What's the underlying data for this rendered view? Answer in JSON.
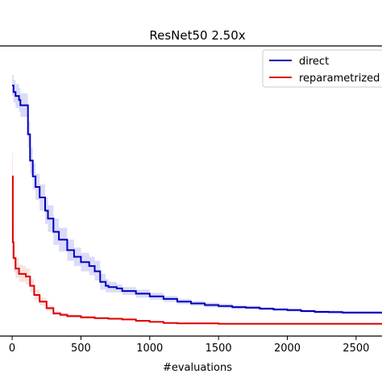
{
  "chart_data": {
    "type": "line",
    "title": "ResNet50 2.50x",
    "xlabel": "#evaluations",
    "ylabel": "",
    "xlim": [
      -100,
      2700
    ],
    "ylim": [
      0,
      1
    ],
    "x_ticks": [
      0,
      500,
      1000,
      1500,
      2000,
      2500
    ],
    "x_tick_labels": [
      "0",
      "500",
      "1000",
      "1500",
      "2000",
      "2500"
    ],
    "legend_position": "top-right",
    "series": [
      {
        "name": "direct",
        "color": "#0000bb",
        "band_color": "#9999ee",
        "x": [
          0,
          10,
          25,
          50,
          60,
          110,
          115,
          130,
          150,
          170,
          200,
          240,
          260,
          300,
          340,
          400,
          450,
          500,
          560,
          600,
          640,
          680,
          700,
          760,
          800,
          900,
          1000,
          1100,
          1200,
          1300,
          1400,
          1500,
          1600,
          1700,
          1800,
          1900,
          2000,
          2100,
          2200,
          2300,
          2400,
          2500,
          2600,
          2700
        ],
        "y": [
          0.905,
          0.88,
          0.865,
          0.85,
          0.83,
          0.83,
          0.72,
          0.62,
          0.56,
          0.52,
          0.48,
          0.43,
          0.4,
          0.35,
          0.32,
          0.28,
          0.255,
          0.235,
          0.22,
          0.2,
          0.16,
          0.145,
          0.14,
          0.135,
          0.125,
          0.115,
          0.105,
          0.095,
          0.085,
          0.078,
          0.072,
          0.068,
          0.064,
          0.062,
          0.058,
          0.055,
          0.053,
          0.049,
          0.046,
          0.045,
          0.043,
          0.043,
          0.043,
          0.043
        ],
        "y_upper": [
          0.945,
          0.925,
          0.91,
          0.895,
          0.875,
          0.87,
          0.77,
          0.67,
          0.61,
          0.57,
          0.53,
          0.48,
          0.45,
          0.4,
          0.365,
          0.32,
          0.29,
          0.27,
          0.255,
          0.24,
          0.19,
          0.17,
          0.16,
          0.15,
          0.14,
          0.13,
          0.118,
          0.106,
          0.095,
          0.087,
          0.081,
          0.076,
          0.072,
          0.069,
          0.065,
          0.062,
          0.059,
          0.055,
          0.052,
          0.051,
          0.049,
          0.049,
          0.049,
          0.049
        ],
        "y_lower": [
          0.865,
          0.84,
          0.82,
          0.805,
          0.785,
          0.79,
          0.67,
          0.57,
          0.51,
          0.47,
          0.43,
          0.38,
          0.35,
          0.3,
          0.275,
          0.24,
          0.22,
          0.2,
          0.185,
          0.165,
          0.13,
          0.12,
          0.12,
          0.12,
          0.11,
          0.1,
          0.092,
          0.084,
          0.075,
          0.069,
          0.063,
          0.06,
          0.056,
          0.055,
          0.051,
          0.048,
          0.047,
          0.043,
          0.04,
          0.039,
          0.037,
          0.037,
          0.037,
          0.037
        ]
      },
      {
        "name": "reparametrized",
        "color": "#dd0000",
        "band_color": "#f2aaaa",
        "x": [
          0,
          5,
          10,
          25,
          50,
          80,
          100,
          130,
          160,
          200,
          250,
          300,
          350,
          400,
          500,
          600,
          700,
          800,
          900,
          1000,
          1100,
          1200,
          1500,
          2000,
          2500,
          2700
        ],
        "y": [
          0.56,
          0.31,
          0.25,
          0.21,
          0.19,
          0.19,
          0.18,
          0.145,
          0.11,
          0.085,
          0.06,
          0.04,
          0.035,
          0.03,
          0.025,
          0.022,
          0.02,
          0.017,
          0.012,
          0.008,
          0.004,
          0.002,
          0.001,
          0.001,
          0.001,
          0.001
        ],
        "y_upper": [
          0.65,
          0.38,
          0.3,
          0.25,
          0.225,
          0.22,
          0.21,
          0.17,
          0.13,
          0.1,
          0.07,
          0.048,
          0.042,
          0.036,
          0.03,
          0.026,
          0.024,
          0.02,
          0.015,
          0.01,
          0.006,
          0.004,
          0.003,
          0.003,
          0.003,
          0.003
        ],
        "y_lower": [
          0.47,
          0.25,
          0.2,
          0.175,
          0.16,
          0.16,
          0.15,
          0.12,
          0.09,
          0.07,
          0.05,
          0.032,
          0.028,
          0.024,
          0.02,
          0.018,
          0.016,
          0.014,
          0.009,
          0.006,
          0.002,
          0.0,
          0.0,
          0.0,
          0.0,
          0.0
        ]
      }
    ]
  }
}
